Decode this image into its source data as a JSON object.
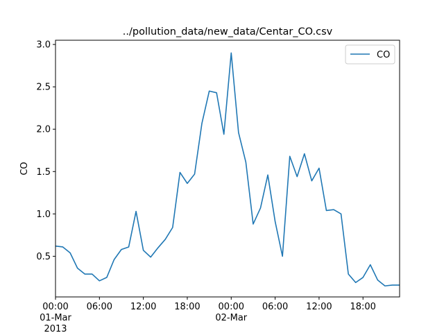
{
  "chart_data": {
    "type": "line",
    "title": "../pollution_data/new_data/Centar_CO.csv",
    "xlabel": "",
    "ylabel": "CO",
    "x_unit": "hour",
    "xlim": [
      0,
      47
    ],
    "ylim": [
      0.02,
      3.05
    ],
    "yticks": [
      0.5,
      1.0,
      1.5,
      2.0,
      2.5,
      3.0
    ],
    "ytick_labels": [
      "0.5",
      "1.0",
      "1.5",
      "2.0",
      "2.5",
      "3.0"
    ],
    "xticks": [
      {
        "x": 0,
        "lines": [
          "00:00",
          "01-Mar",
          "2013"
        ]
      },
      {
        "x": 6,
        "lines": [
          "06:00"
        ]
      },
      {
        "x": 12,
        "lines": [
          "12:00"
        ]
      },
      {
        "x": 18,
        "lines": [
          "18:00"
        ]
      },
      {
        "x": 24,
        "lines": [
          "00:00",
          "02-Mar"
        ]
      },
      {
        "x": 30,
        "lines": [
          "06:00"
        ]
      },
      {
        "x": 36,
        "lines": [
          "12:00"
        ]
      },
      {
        "x": 42,
        "lines": [
          "18:00"
        ]
      }
    ],
    "legend": {
      "position": "top-right"
    },
    "series": [
      {
        "name": "CO",
        "color": "#1f77b4",
        "x": [
          0,
          1,
          2,
          3,
          4,
          5,
          6,
          7,
          8,
          9,
          10,
          11,
          12,
          13,
          14,
          15,
          16,
          17,
          18,
          19,
          20,
          21,
          22,
          23,
          24,
          25,
          26,
          27,
          28,
          29,
          30,
          31,
          32,
          33,
          34,
          35,
          36,
          37,
          38,
          39,
          40,
          41,
          42,
          43,
          44,
          45,
          46,
          47
        ],
        "values": [
          0.62,
          0.61,
          0.54,
          0.36,
          0.29,
          0.29,
          0.21,
          0.25,
          0.46,
          0.58,
          0.61,
          1.03,
          0.57,
          0.49,
          0.6,
          0.7,
          0.84,
          1.49,
          1.36,
          1.47,
          2.07,
          2.45,
          2.43,
          1.94,
          2.9,
          1.96,
          1.61,
          0.88,
          1.07,
          1.46,
          0.91,
          0.5,
          1.68,
          1.44,
          1.71,
          1.39,
          1.54,
          1.04,
          1.05,
          1.0,
          0.29,
          0.19,
          0.25,
          0.4,
          0.22,
          0.15,
          0.16,
          0.16
        ]
      }
    ]
  }
}
